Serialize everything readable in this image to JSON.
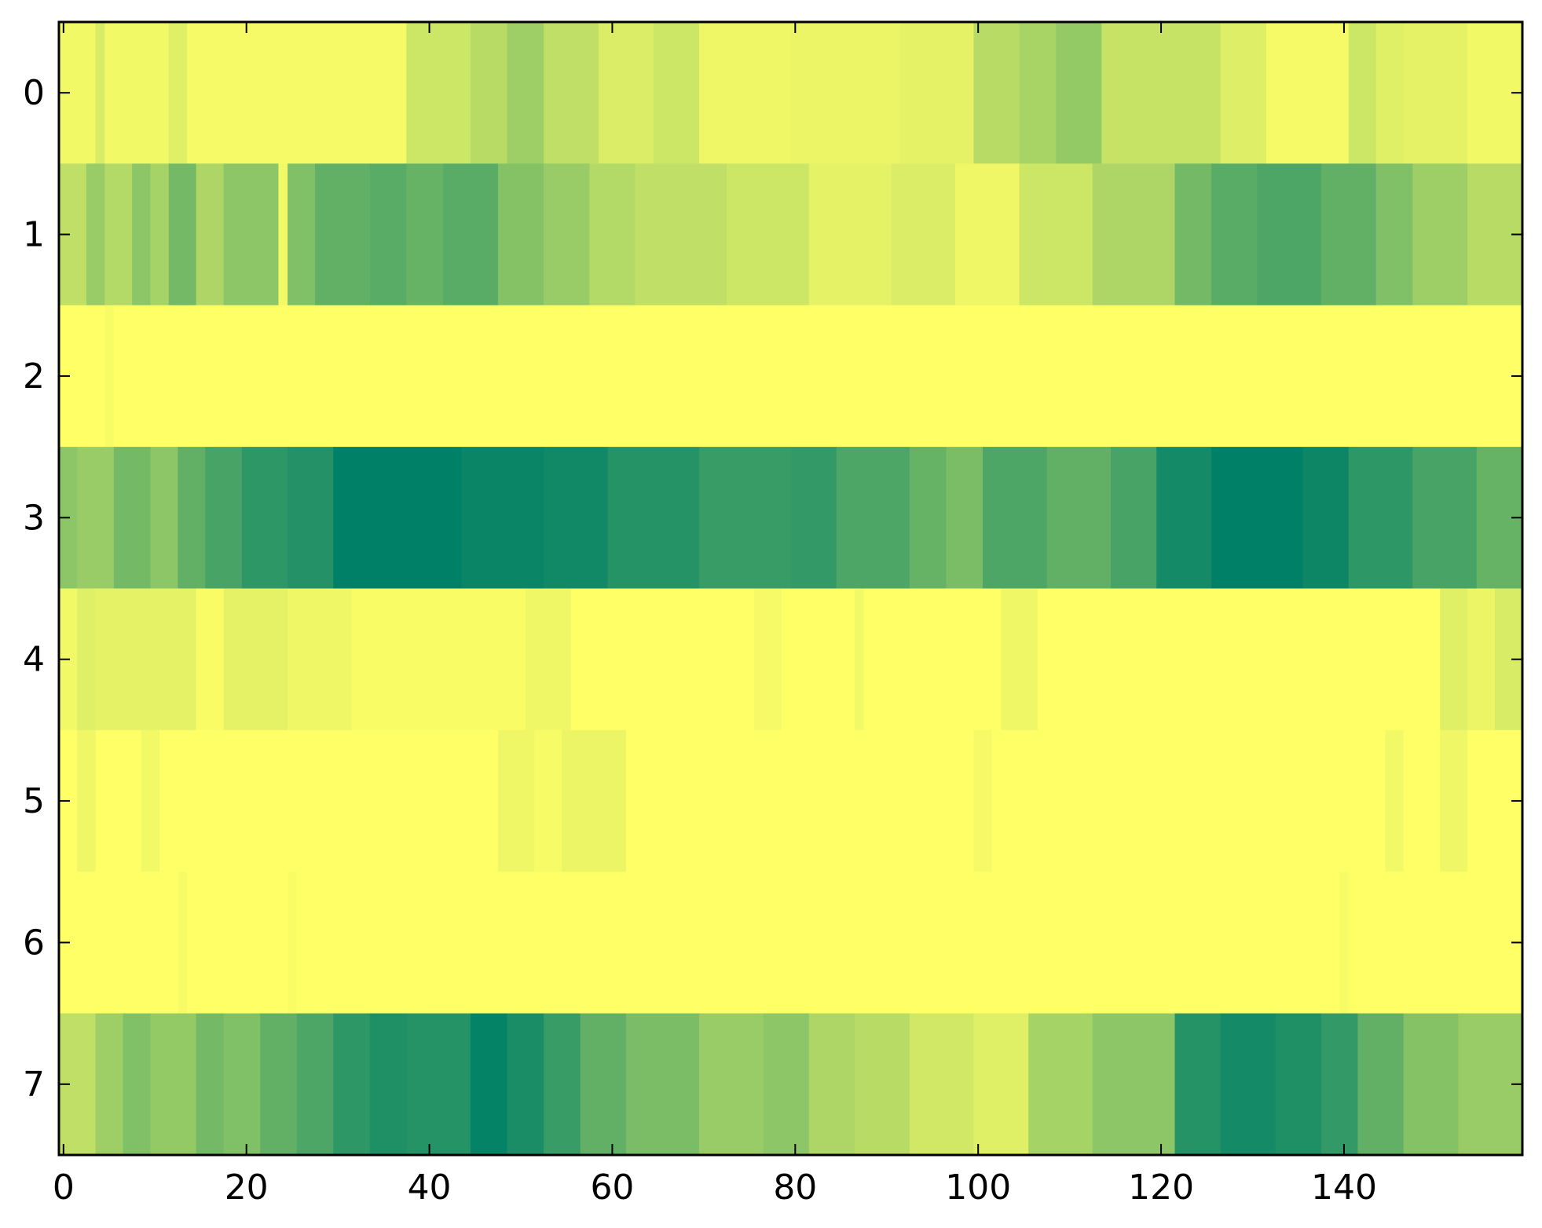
{
  "chart_data": {
    "type": "heatmap",
    "title": "",
    "xlabel": "",
    "ylabel": "",
    "colormap": "summer_r",
    "colors": {
      "low": "#ffff66",
      "high": "#008066"
    },
    "vmin": 0,
    "vmax": 1,
    "xlim": [
      -0.5,
      159.5
    ],
    "ylim": [
      -0.5,
      7.5
    ],
    "x_ticks": [
      0,
      20,
      40,
      60,
      80,
      100,
      120,
      140
    ],
    "x_tick_labels": [
      "0",
      "20",
      "40",
      "60",
      "80",
      "100",
      "120",
      "140"
    ],
    "y_ticks": [
      0,
      1,
      2,
      3,
      4,
      5,
      6,
      7
    ],
    "y_tick_labels": [
      "0",
      "1",
      "2",
      "3",
      "4",
      "5",
      "6",
      "7"
    ],
    "n_cols": 160,
    "rows": [
      {
        "row": 0,
        "segments": [
          [
            0,
            3,
            0.05
          ],
          [
            4,
            4,
            0.15
          ],
          [
            5,
            11,
            0.05
          ],
          [
            12,
            13,
            0.12
          ],
          [
            14,
            37,
            0.04
          ],
          [
            38,
            44,
            0.2
          ],
          [
            45,
            48,
            0.28
          ],
          [
            49,
            52,
            0.38
          ],
          [
            53,
            58,
            0.25
          ],
          [
            59,
            64,
            0.14
          ],
          [
            65,
            69,
            0.2
          ],
          [
            70,
            79,
            0.06
          ],
          [
            80,
            91,
            0.08
          ],
          [
            92,
            99,
            0.1
          ],
          [
            100,
            104,
            0.28
          ],
          [
            105,
            108,
            0.34
          ],
          [
            109,
            113,
            0.42
          ],
          [
            114,
            126,
            0.22
          ],
          [
            127,
            131,
            0.13
          ],
          [
            132,
            140,
            0.04
          ],
          [
            141,
            143,
            0.2
          ],
          [
            144,
            146,
            0.12
          ],
          [
            147,
            153,
            0.1
          ],
          [
            154,
            159,
            0.05
          ]
        ]
      },
      {
        "row": 1,
        "segments": [
          [
            0,
            2,
            0.25
          ],
          [
            3,
            4,
            0.4
          ],
          [
            5,
            7,
            0.3
          ],
          [
            8,
            9,
            0.45
          ],
          [
            10,
            11,
            0.35
          ],
          [
            12,
            14,
            0.55
          ],
          [
            15,
            17,
            0.32
          ],
          [
            18,
            23,
            0.45
          ],
          [
            24,
            24,
            0.05
          ],
          [
            25,
            27,
            0.5
          ],
          [
            28,
            33,
            0.62
          ],
          [
            34,
            37,
            0.65
          ],
          [
            38,
            41,
            0.6
          ],
          [
            42,
            47,
            0.65
          ],
          [
            48,
            52,
            0.48
          ],
          [
            53,
            57,
            0.4
          ],
          [
            58,
            62,
            0.3
          ],
          [
            63,
            72,
            0.25
          ],
          [
            73,
            81,
            0.2
          ],
          [
            82,
            90,
            0.1
          ],
          [
            91,
            97,
            0.14
          ],
          [
            98,
            104,
            0.06
          ],
          [
            105,
            112,
            0.2
          ],
          [
            113,
            121,
            0.32
          ],
          [
            122,
            125,
            0.55
          ],
          [
            126,
            130,
            0.65
          ],
          [
            131,
            137,
            0.7
          ],
          [
            138,
            143,
            0.62
          ],
          [
            144,
            147,
            0.5
          ],
          [
            148,
            153,
            0.38
          ],
          [
            154,
            159,
            0.28
          ]
        ]
      },
      {
        "row": 2,
        "segments": [
          [
            0,
            4,
            0.0
          ],
          [
            5,
            5,
            0.03
          ],
          [
            6,
            159,
            0.0
          ]
        ]
      },
      {
        "row": 3,
        "segments": [
          [
            0,
            1,
            0.45
          ],
          [
            2,
            5,
            0.4
          ],
          [
            6,
            9,
            0.55
          ],
          [
            10,
            12,
            0.45
          ],
          [
            13,
            15,
            0.62
          ],
          [
            16,
            19,
            0.72
          ],
          [
            20,
            24,
            0.82
          ],
          [
            25,
            29,
            0.86
          ],
          [
            30,
            43,
            1.0
          ],
          [
            44,
            52,
            0.96
          ],
          [
            53,
            59,
            0.93
          ],
          [
            60,
            69,
            0.85
          ],
          [
            70,
            79,
            0.78
          ],
          [
            80,
            84,
            0.8
          ],
          [
            85,
            92,
            0.7
          ],
          [
            93,
            96,
            0.6
          ],
          [
            97,
            100,
            0.52
          ],
          [
            101,
            107,
            0.7
          ],
          [
            108,
            114,
            0.62
          ],
          [
            115,
            119,
            0.72
          ],
          [
            120,
            125,
            0.92
          ],
          [
            126,
            135,
            1.0
          ],
          [
            136,
            140,
            0.95
          ],
          [
            141,
            147,
            0.82
          ],
          [
            148,
            154,
            0.72
          ],
          [
            155,
            159,
            0.6
          ]
        ]
      },
      {
        "row": 4,
        "segments": [
          [
            0,
            1,
            0.05
          ],
          [
            2,
            3,
            0.12
          ],
          [
            4,
            14,
            0.1
          ],
          [
            15,
            17,
            0.02
          ],
          [
            18,
            24,
            0.1
          ],
          [
            25,
            31,
            0.06
          ],
          [
            32,
            50,
            0.02
          ],
          [
            51,
            55,
            0.06
          ],
          [
            56,
            75,
            0.0
          ],
          [
            76,
            78,
            0.04
          ],
          [
            79,
            86,
            0.0
          ],
          [
            87,
            87,
            0.05
          ],
          [
            88,
            102,
            0.0
          ],
          [
            103,
            106,
            0.06
          ],
          [
            107,
            150,
            0.0
          ],
          [
            151,
            153,
            0.12
          ],
          [
            154,
            156,
            0.08
          ],
          [
            157,
            159,
            0.15
          ]
        ]
      },
      {
        "row": 5,
        "segments": [
          [
            0,
            1,
            0.0
          ],
          [
            2,
            3,
            0.06
          ],
          [
            4,
            8,
            0.0
          ],
          [
            9,
            10,
            0.05
          ],
          [
            11,
            47,
            0.0
          ],
          [
            48,
            51,
            0.06
          ],
          [
            52,
            54,
            0.03
          ],
          [
            55,
            61,
            0.08
          ],
          [
            62,
            99,
            0.0
          ],
          [
            100,
            101,
            0.04
          ],
          [
            102,
            144,
            0.0
          ],
          [
            145,
            146,
            0.05
          ],
          [
            147,
            150,
            0.0
          ],
          [
            151,
            153,
            0.06
          ],
          [
            154,
            159,
            0.0
          ]
        ]
      },
      {
        "row": 6,
        "segments": [
          [
            0,
            12,
            0.0
          ],
          [
            13,
            13,
            0.03
          ],
          [
            14,
            24,
            0.0
          ],
          [
            25,
            25,
            0.02
          ],
          [
            26,
            139,
            0.0
          ],
          [
            140,
            140,
            0.03
          ],
          [
            141,
            159,
            0.0
          ]
        ]
      },
      {
        "row": 7,
        "segments": [
          [
            0,
            3,
            0.25
          ],
          [
            4,
            6,
            0.38
          ],
          [
            7,
            9,
            0.5
          ],
          [
            10,
            14,
            0.42
          ],
          [
            15,
            17,
            0.55
          ],
          [
            18,
            21,
            0.5
          ],
          [
            22,
            25,
            0.62
          ],
          [
            26,
            29,
            0.7
          ],
          [
            30,
            33,
            0.82
          ],
          [
            34,
            37,
            0.88
          ],
          [
            38,
            44,
            0.85
          ],
          [
            45,
            48,
            0.98
          ],
          [
            49,
            52,
            0.9
          ],
          [
            53,
            56,
            0.78
          ],
          [
            57,
            61,
            0.62
          ],
          [
            62,
            69,
            0.52
          ],
          [
            70,
            76,
            0.4
          ],
          [
            77,
            81,
            0.45
          ],
          [
            82,
            86,
            0.32
          ],
          [
            87,
            92,
            0.28
          ],
          [
            93,
            99,
            0.18
          ],
          [
            100,
            105,
            0.12
          ],
          [
            106,
            112,
            0.35
          ],
          [
            113,
            121,
            0.45
          ],
          [
            122,
            126,
            0.85
          ],
          [
            127,
            132,
            0.92
          ],
          [
            133,
            137,
            0.88
          ],
          [
            138,
            141,
            0.8
          ],
          [
            142,
            146,
            0.62
          ],
          [
            147,
            152,
            0.48
          ],
          [
            153,
            159,
            0.4
          ]
        ]
      }
    ]
  }
}
